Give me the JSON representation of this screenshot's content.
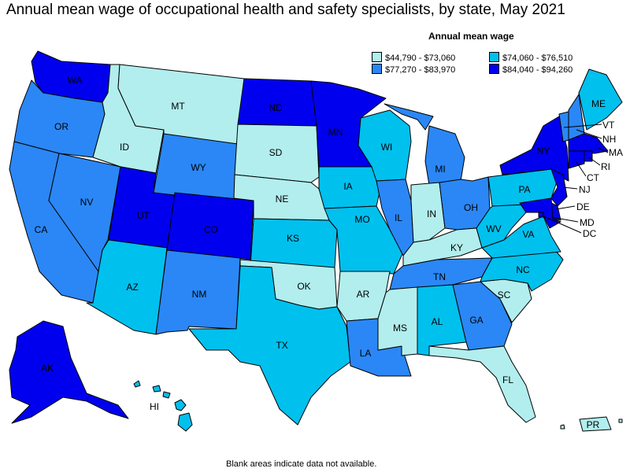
{
  "title": "Annual mean wage of occupational health and safety specialists, by state, May 2021",
  "legend": {
    "title": "Annual mean wage",
    "items": [
      {
        "label": "$44,790 - $73,060",
        "color": "#b2eeee"
      },
      {
        "label": "$74,060 - $76,510",
        "color": "#00c0ee"
      },
      {
        "label": "$77,270 - $83,970",
        "color": "#2b87f5"
      },
      {
        "label": "$84,040 - $94,260",
        "color": "#0000ee"
      }
    ]
  },
  "footnote": "Blank areas indicate data not available.",
  "states": {
    "WA": {
      "label": "WA",
      "tier": 3
    },
    "OR": {
      "label": "OR",
      "tier": 2
    },
    "CA": {
      "label": "CA",
      "tier": 2
    },
    "NV": {
      "label": "NV",
      "tier": 2
    },
    "ID": {
      "label": "ID",
      "tier": 0
    },
    "MT": {
      "label": "MT",
      "tier": 0
    },
    "WY": {
      "label": "WY",
      "tier": 2
    },
    "UT": {
      "label": "UT",
      "tier": 3
    },
    "CO": {
      "label": "CO",
      "tier": 3
    },
    "AZ": {
      "label": "AZ",
      "tier": 1
    },
    "NM": {
      "label": "NM",
      "tier": 2
    },
    "ND": {
      "label": "ND",
      "tier": 3
    },
    "SD": {
      "label": "SD",
      "tier": 0
    },
    "NE": {
      "label": "NE",
      "tier": 0
    },
    "KS": {
      "label": "KS",
      "tier": 1
    },
    "OK": {
      "label": "OK",
      "tier": 0
    },
    "TX": {
      "label": "TX",
      "tier": 1
    },
    "MN": {
      "label": "MN",
      "tier": 3
    },
    "IA": {
      "label": "IA",
      "tier": 1
    },
    "MO": {
      "label": "MO",
      "tier": 1
    },
    "AR": {
      "label": "AR",
      "tier": 0
    },
    "LA": {
      "label": "LA",
      "tier": 2
    },
    "WI": {
      "label": "WI",
      "tier": 1
    },
    "IL": {
      "label": "IL",
      "tier": 2
    },
    "MI": {
      "label": "MI",
      "tier": 2
    },
    "IN": {
      "label": "IN",
      "tier": 0
    },
    "OH": {
      "label": "OH",
      "tier": 2
    },
    "KY": {
      "label": "KY",
      "tier": 0
    },
    "TN": {
      "label": "TN",
      "tier": 2
    },
    "MS": {
      "label": "MS",
      "tier": 0
    },
    "AL": {
      "label": "AL",
      "tier": 1
    },
    "GA": {
      "label": "GA",
      "tier": 2
    },
    "FL": {
      "label": "FL",
      "tier": 0
    },
    "SC": {
      "label": "SC",
      "tier": 0
    },
    "NC": {
      "label": "NC",
      "tier": 1
    },
    "VA": {
      "label": "VA",
      "tier": 1
    },
    "WV": {
      "label": "WV",
      "tier": 1
    },
    "PA": {
      "label": "PA",
      "tier": 1
    },
    "NY": {
      "label": "NY",
      "tier": 3
    },
    "VT": {
      "label": "VT",
      "tier": 2
    },
    "NH": {
      "label": "NH",
      "tier": 2
    },
    "ME": {
      "label": "ME",
      "tier": 1
    },
    "MA": {
      "label": "MA",
      "tier": 3
    },
    "RI": {
      "label": "RI",
      "tier": 3
    },
    "CT": {
      "label": "CT",
      "tier": 3
    },
    "NJ": {
      "label": "NJ",
      "tier": 3
    },
    "DE": {
      "label": "DE",
      "tier": 3
    },
    "MD": {
      "label": "MD",
      "tier": 3
    },
    "DC": {
      "label": "DC",
      "tier": 3
    },
    "AK": {
      "label": "AK",
      "tier": 3
    },
    "HI": {
      "label": "HI",
      "tier": 1
    },
    "PR": {
      "label": "PR",
      "tier": 0
    }
  }
}
